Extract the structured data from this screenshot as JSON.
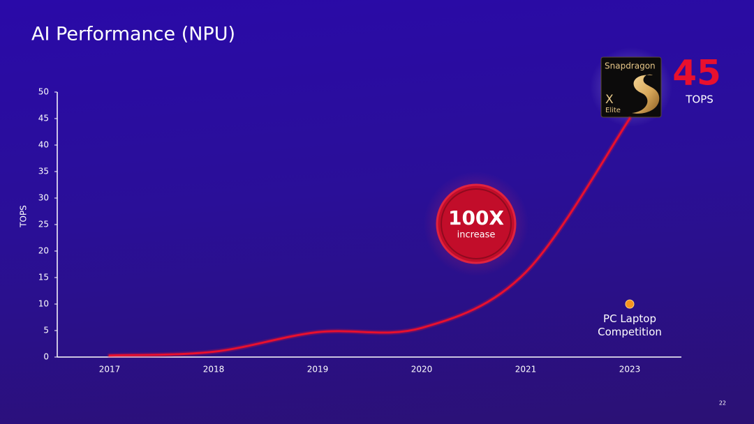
{
  "chart_data": {
    "type": "line",
    "title": "AI Performance (NPU)",
    "ylabel": "TOPS",
    "categories": [
      "2017",
      "2018",
      "2019",
      "2020",
      "2021",
      "2023"
    ],
    "series": [
      {
        "color": "#e8102e",
        "values": [
          0.3,
          1,
          4.7,
          5.5,
          16,
          45
        ]
      },
      {
        "name": "PC Laptop Competition",
        "color": "#f7931e",
        "values": [
          null,
          null,
          null,
          null,
          null,
          10
        ]
      }
    ],
    "ylim": [
      0,
      50
    ],
    "yticks": [
      0,
      5,
      10,
      15,
      20,
      25,
      30,
      35,
      40,
      45,
      50
    ],
    "annotations": {
      "badge_value": "100X",
      "badge_text": "increase",
      "unit": "TOPS",
      "chip_brand": "Snapdragon",
      "chip_model": "X",
      "chip_tier": "Elite"
    },
    "page_number": "22"
  }
}
